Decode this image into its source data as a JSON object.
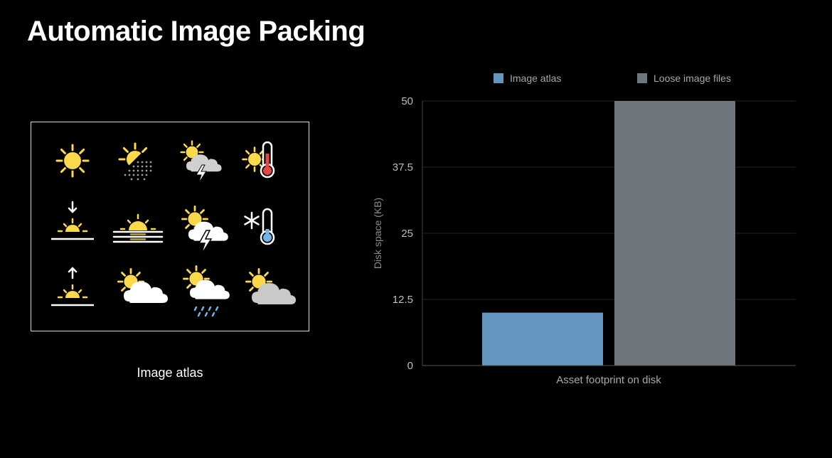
{
  "page": {
    "title": "Automatic Image Packing"
  },
  "atlas": {
    "caption": "Image atlas",
    "icons": [
      "sun-icon",
      "sun-haze-icon",
      "sun-thunderstorm-icon",
      "sun-thermometer-icon",
      "sunset-icon",
      "sun-horizon-fog-icon",
      "sun-lightning-cloud-icon",
      "snowflake-thermometer-icon",
      "sunrise-icon",
      "sun-cloud-icon",
      "sun-rain-cloud-icon",
      "sun-gray-cloud-icon"
    ]
  },
  "colors": {
    "atlas_bar": "#6496bf",
    "loose_bar": "#6f767d",
    "sun": "#fbd94a",
    "cloud": "#ffffff",
    "thermo_hot": "#e64646",
    "thermo_cold": "#6fb5e8"
  },
  "chart_data": {
    "type": "bar",
    "categories": [
      "Asset footprint on disk"
    ],
    "series": [
      {
        "name": "Image atlas",
        "values": [
          10
        ]
      },
      {
        "name": "Loose image files",
        "values": [
          50
        ]
      }
    ],
    "xlabel": "Asset footprint on disk",
    "ylabel": "Disk space (KB)",
    "ylim": [
      0,
      50
    ],
    "yticks": [
      "0",
      "12.5",
      "25",
      "37.5",
      "50"
    ],
    "grid": true,
    "legend": "top"
  }
}
